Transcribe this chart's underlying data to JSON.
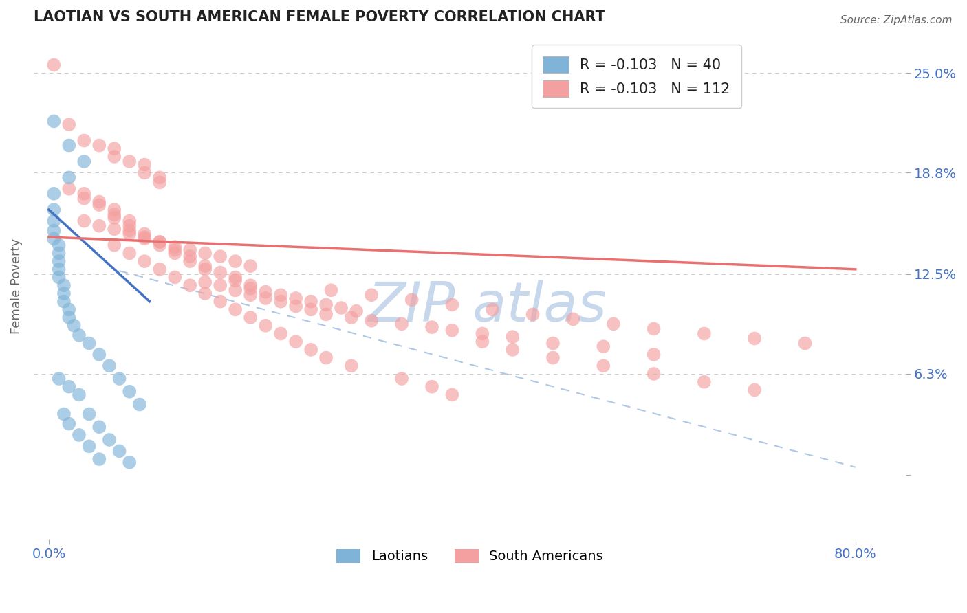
{
  "title": "LAOTIAN VS SOUTH AMERICAN FEMALE POVERTY CORRELATION CHART",
  "source": "Source: ZipAtlas.com",
  "ylabel": "Female Poverty",
  "x_ticks": [
    0.0,
    0.8
  ],
  "x_tick_labels": [
    "0.0%",
    "80.0%"
  ],
  "y_ticks": [
    0.0,
    0.063,
    0.125,
    0.188,
    0.25
  ],
  "y_tick_labels": [
    "",
    "6.3%",
    "12.5%",
    "18.8%",
    "25.0%"
  ],
  "xlim": [
    -0.015,
    0.85
  ],
  "ylim": [
    -0.04,
    0.275
  ],
  "background_color": "#ffffff",
  "grid_color": "#cccccc",
  "title_color": "#222222",
  "tick_color": "#4472c4",
  "laotian_color": "#7fb3d8",
  "south_american_color": "#f4a0a0",
  "laotian_line_color": "#4472c4",
  "south_american_line_color": "#e87070",
  "dashed_line_color": "#aec6e8",
  "watermark_color": "#c8d8ec",
  "legend_entry_1": "R = -0.103   N = 40",
  "legend_entry_2": "R = -0.103   N = 112",
  "legend_bottom_1": "Laotians",
  "legend_bottom_2": "South Americans",
  "laotian_points": [
    [
      0.005,
      0.22
    ],
    [
      0.02,
      0.205
    ],
    [
      0.035,
      0.195
    ],
    [
      0.02,
      0.185
    ],
    [
      0.005,
      0.175
    ],
    [
      0.005,
      0.165
    ],
    [
      0.005,
      0.158
    ],
    [
      0.005,
      0.152
    ],
    [
      0.005,
      0.147
    ],
    [
      0.01,
      0.143
    ],
    [
      0.01,
      0.138
    ],
    [
      0.01,
      0.133
    ],
    [
      0.01,
      0.128
    ],
    [
      0.01,
      0.123
    ],
    [
      0.015,
      0.118
    ],
    [
      0.015,
      0.113
    ],
    [
      0.015,
      0.108
    ],
    [
      0.02,
      0.103
    ],
    [
      0.02,
      0.098
    ],
    [
      0.025,
      0.093
    ],
    [
      0.03,
      0.087
    ],
    [
      0.04,
      0.082
    ],
    [
      0.05,
      0.075
    ],
    [
      0.06,
      0.068
    ],
    [
      0.07,
      0.06
    ],
    [
      0.08,
      0.052
    ],
    [
      0.09,
      0.044
    ],
    [
      0.01,
      0.06
    ],
    [
      0.02,
      0.055
    ],
    [
      0.03,
      0.05
    ],
    [
      0.04,
      0.038
    ],
    [
      0.05,
      0.03
    ],
    [
      0.06,
      0.022
    ],
    [
      0.07,
      0.015
    ],
    [
      0.08,
      0.008
    ],
    [
      0.015,
      0.038
    ],
    [
      0.02,
      0.032
    ],
    [
      0.03,
      0.025
    ],
    [
      0.04,
      0.018
    ],
    [
      0.05,
      0.01
    ]
  ],
  "south_american_points": [
    [
      0.005,
      0.255
    ],
    [
      0.02,
      0.218
    ],
    [
      0.035,
      0.208
    ],
    [
      0.05,
      0.205
    ],
    [
      0.065,
      0.203
    ],
    [
      0.065,
      0.198
    ],
    [
      0.08,
      0.195
    ],
    [
      0.095,
      0.193
    ],
    [
      0.095,
      0.188
    ],
    [
      0.11,
      0.185
    ],
    [
      0.11,
      0.182
    ],
    [
      0.02,
      0.178
    ],
    [
      0.035,
      0.175
    ],
    [
      0.035,
      0.172
    ],
    [
      0.05,
      0.17
    ],
    [
      0.05,
      0.168
    ],
    [
      0.065,
      0.165
    ],
    [
      0.065,
      0.162
    ],
    [
      0.065,
      0.16
    ],
    [
      0.08,
      0.158
    ],
    [
      0.08,
      0.155
    ],
    [
      0.08,
      0.152
    ],
    [
      0.095,
      0.15
    ],
    [
      0.095,
      0.148
    ],
    [
      0.11,
      0.145
    ],
    [
      0.11,
      0.143
    ],
    [
      0.125,
      0.14
    ],
    [
      0.125,
      0.138
    ],
    [
      0.14,
      0.136
    ],
    [
      0.14,
      0.133
    ],
    [
      0.155,
      0.13
    ],
    [
      0.155,
      0.128
    ],
    [
      0.17,
      0.126
    ],
    [
      0.185,
      0.123
    ],
    [
      0.185,
      0.121
    ],
    [
      0.2,
      0.118
    ],
    [
      0.2,
      0.116
    ],
    [
      0.215,
      0.114
    ],
    [
      0.23,
      0.112
    ],
    [
      0.245,
      0.11
    ],
    [
      0.26,
      0.108
    ],
    [
      0.275,
      0.106
    ],
    [
      0.29,
      0.104
    ],
    [
      0.305,
      0.102
    ],
    [
      0.035,
      0.158
    ],
    [
      0.05,
      0.155
    ],
    [
      0.065,
      0.153
    ],
    [
      0.08,
      0.15
    ],
    [
      0.095,
      0.147
    ],
    [
      0.11,
      0.145
    ],
    [
      0.125,
      0.142
    ],
    [
      0.14,
      0.14
    ],
    [
      0.155,
      0.138
    ],
    [
      0.17,
      0.136
    ],
    [
      0.185,
      0.133
    ],
    [
      0.2,
      0.13
    ],
    [
      0.155,
      0.12
    ],
    [
      0.17,
      0.118
    ],
    [
      0.185,
      0.115
    ],
    [
      0.2,
      0.112
    ],
    [
      0.215,
      0.11
    ],
    [
      0.23,
      0.108
    ],
    [
      0.245,
      0.105
    ],
    [
      0.26,
      0.103
    ],
    [
      0.275,
      0.1
    ],
    [
      0.3,
      0.098
    ],
    [
      0.32,
      0.096
    ],
    [
      0.35,
      0.094
    ],
    [
      0.38,
      0.092
    ],
    [
      0.4,
      0.09
    ],
    [
      0.43,
      0.088
    ],
    [
      0.46,
      0.086
    ],
    [
      0.5,
      0.082
    ],
    [
      0.55,
      0.08
    ],
    [
      0.6,
      0.075
    ],
    [
      0.065,
      0.143
    ],
    [
      0.08,
      0.138
    ],
    [
      0.095,
      0.133
    ],
    [
      0.11,
      0.128
    ],
    [
      0.125,
      0.123
    ],
    [
      0.14,
      0.118
    ],
    [
      0.155,
      0.113
    ],
    [
      0.17,
      0.108
    ],
    [
      0.185,
      0.103
    ],
    [
      0.2,
      0.098
    ],
    [
      0.215,
      0.093
    ],
    [
      0.23,
      0.088
    ],
    [
      0.245,
      0.083
    ],
    [
      0.26,
      0.078
    ],
    [
      0.275,
      0.073
    ],
    [
      0.3,
      0.068
    ],
    [
      0.35,
      0.06
    ],
    [
      0.38,
      0.055
    ],
    [
      0.4,
      0.05
    ],
    [
      0.43,
      0.083
    ],
    [
      0.46,
      0.078
    ],
    [
      0.5,
      0.073
    ],
    [
      0.55,
      0.068
    ],
    [
      0.6,
      0.063
    ],
    [
      0.65,
      0.058
    ],
    [
      0.7,
      0.053
    ],
    [
      0.28,
      0.115
    ],
    [
      0.32,
      0.112
    ],
    [
      0.36,
      0.109
    ],
    [
      0.4,
      0.106
    ],
    [
      0.44,
      0.103
    ],
    [
      0.48,
      0.1
    ],
    [
      0.52,
      0.097
    ],
    [
      0.56,
      0.094
    ],
    [
      0.6,
      0.091
    ],
    [
      0.65,
      0.088
    ],
    [
      0.7,
      0.085
    ],
    [
      0.75,
      0.082
    ]
  ],
  "lao_line": [
    [
      0.0,
      0.165
    ],
    [
      0.1,
      0.108
    ]
  ],
  "sa_line": [
    [
      0.0,
      0.148
    ],
    [
      0.8,
      0.128
    ]
  ],
  "dash_line": [
    [
      0.07,
      0.127
    ],
    [
      0.8,
      0.005
    ]
  ]
}
